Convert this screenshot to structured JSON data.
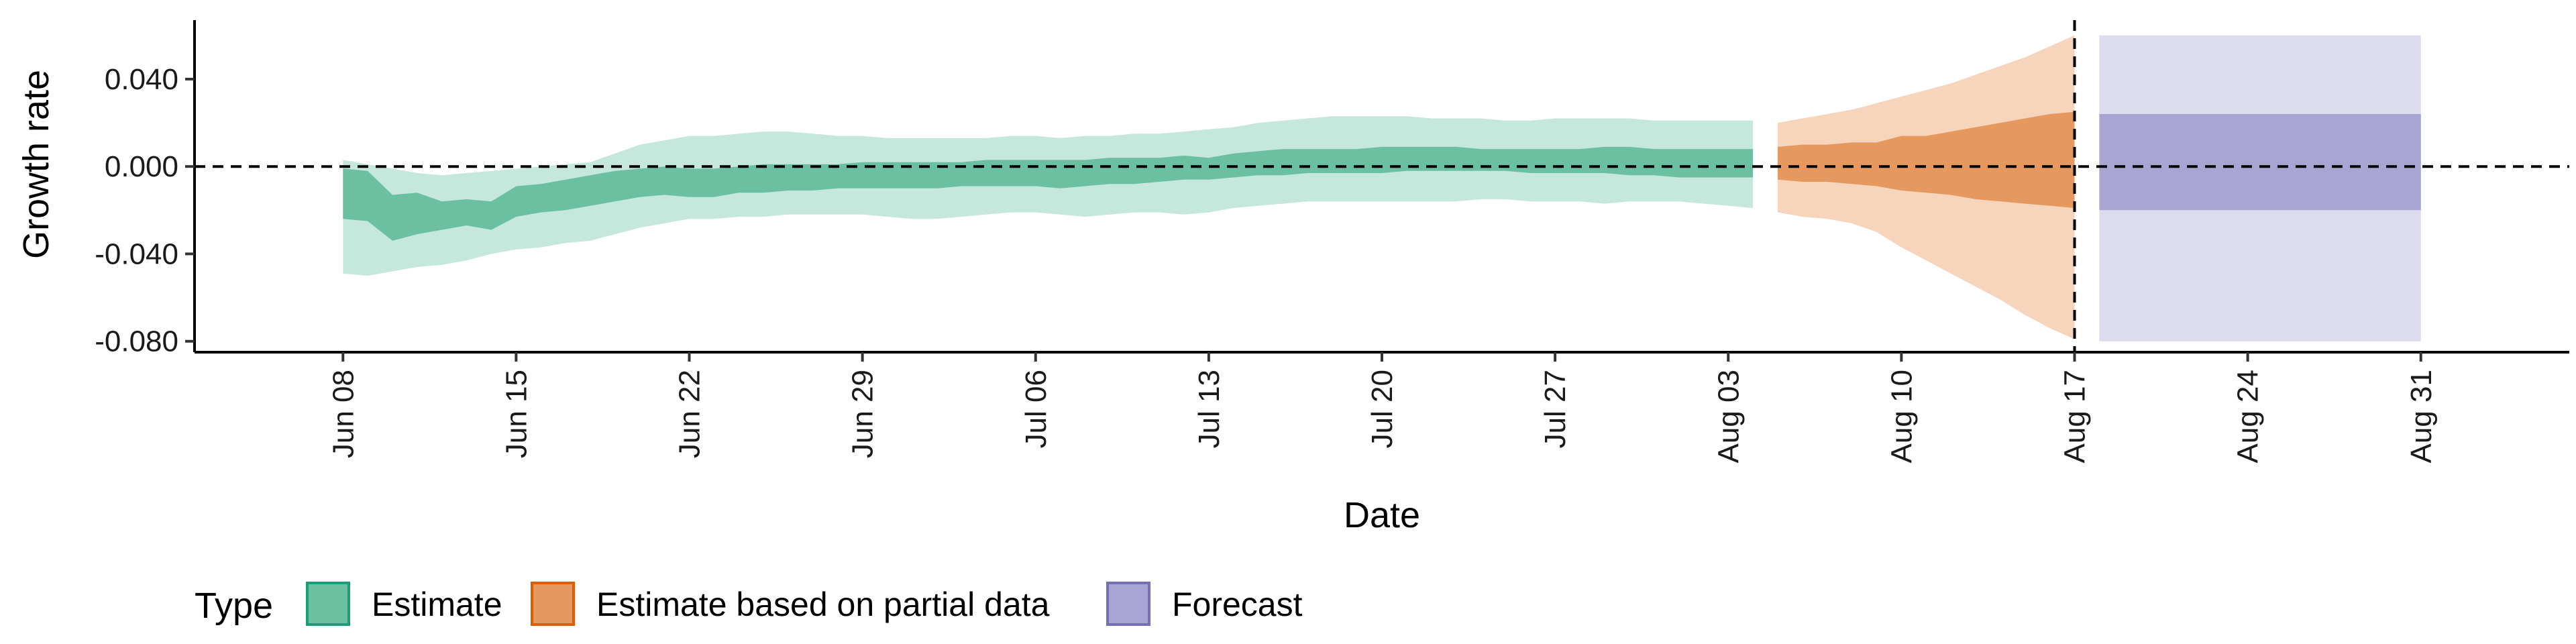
{
  "chart_data": {
    "type": "area",
    "title": "",
    "xlabel": "Date",
    "ylabel": "Growth rate",
    "xlim": [
      "2020-06-02",
      "2020-09-06"
    ],
    "ylim": [
      -0.085,
      0.067
    ],
    "x_ticks": [
      {
        "date": "2020-06-08",
        "label": "Jun 08"
      },
      {
        "date": "2020-06-15",
        "label": "Jun 15"
      },
      {
        "date": "2020-06-22",
        "label": "Jun 22"
      },
      {
        "date": "2020-06-29",
        "label": "Jun 29"
      },
      {
        "date": "2020-07-06",
        "label": "Jul 06"
      },
      {
        "date": "2020-07-13",
        "label": "Jul 13"
      },
      {
        "date": "2020-07-20",
        "label": "Jul 20"
      },
      {
        "date": "2020-07-27",
        "label": "Jul 27"
      },
      {
        "date": "2020-08-03",
        "label": "Aug 03"
      },
      {
        "date": "2020-08-10",
        "label": "Aug 10"
      },
      {
        "date": "2020-08-17",
        "label": "Aug 17"
      },
      {
        "date": "2020-08-24",
        "label": "Aug 24"
      },
      {
        "date": "2020-08-31",
        "label": "Aug 31"
      }
    ],
    "y_ticks": [
      {
        "value": 0.04,
        "label": "0.040"
      },
      {
        "value": 0.0,
        "label": "0.000"
      },
      {
        "value": -0.04,
        "label": "-0.040"
      },
      {
        "value": -0.08,
        "label": "-0.080"
      }
    ],
    "grid": false,
    "reference_lines": {
      "horizontal_y": 0.0,
      "vertical_date": "2020-08-17"
    },
    "legend": {
      "title": "Type",
      "position": "bottom",
      "entries": [
        {
          "label": "Estimate",
          "series": "Estimate"
        },
        {
          "label": "Estimate based on partial data",
          "series": "Estimate based on partial data"
        },
        {
          "label": "Forecast",
          "series": "Forecast"
        }
      ]
    },
    "series": [
      {
        "name": "Estimate",
        "colors": {
          "outer": "#c6e8dc",
          "inner": "#6cc0a2",
          "border": "#1b9e77"
        },
        "x": [
          "2020-06-08",
          "2020-06-09",
          "2020-06-10",
          "2020-06-11",
          "2020-06-12",
          "2020-06-13",
          "2020-06-14",
          "2020-06-15",
          "2020-06-16",
          "2020-06-17",
          "2020-06-18",
          "2020-06-19",
          "2020-06-20",
          "2020-06-21",
          "2020-06-22",
          "2020-06-23",
          "2020-06-24",
          "2020-06-25",
          "2020-06-26",
          "2020-06-27",
          "2020-06-28",
          "2020-06-29",
          "2020-06-30",
          "2020-07-01",
          "2020-07-02",
          "2020-07-03",
          "2020-07-04",
          "2020-07-05",
          "2020-07-06",
          "2020-07-07",
          "2020-07-08",
          "2020-07-09",
          "2020-07-10",
          "2020-07-11",
          "2020-07-12",
          "2020-07-13",
          "2020-07-14",
          "2020-07-15",
          "2020-07-16",
          "2020-07-17",
          "2020-07-18",
          "2020-07-19",
          "2020-07-20",
          "2020-07-21",
          "2020-07-22",
          "2020-07-23",
          "2020-07-24",
          "2020-07-25",
          "2020-07-26",
          "2020-07-27",
          "2020-07-28",
          "2020-07-29",
          "2020-07-30",
          "2020-07-31",
          "2020-08-01",
          "2020-08-02",
          "2020-08-03",
          "2020-08-04"
        ],
        "lower_90": [
          -0.049,
          -0.05,
          -0.048,
          -0.046,
          -0.045,
          -0.043,
          -0.04,
          -0.038,
          -0.037,
          -0.035,
          -0.034,
          -0.031,
          -0.028,
          -0.026,
          -0.024,
          -0.024,
          -0.023,
          -0.023,
          -0.022,
          -0.022,
          -0.022,
          -0.022,
          -0.023,
          -0.024,
          -0.024,
          -0.023,
          -0.022,
          -0.021,
          -0.021,
          -0.022,
          -0.023,
          -0.022,
          -0.021,
          -0.021,
          -0.022,
          -0.021,
          -0.019,
          -0.018,
          -0.017,
          -0.016,
          -0.016,
          -0.016,
          -0.016,
          -0.016,
          -0.016,
          -0.016,
          -0.015,
          -0.015,
          -0.016,
          -0.016,
          -0.016,
          -0.017,
          -0.016,
          -0.016,
          -0.016,
          -0.017,
          -0.018,
          -0.019
        ],
        "upper_90": [
          0.003,
          0.001,
          -0.001,
          -0.003,
          -0.004,
          -0.003,
          -0.002,
          -0.001,
          0.0,
          0.001,
          0.002,
          0.006,
          0.01,
          0.012,
          0.014,
          0.014,
          0.015,
          0.016,
          0.016,
          0.015,
          0.014,
          0.014,
          0.013,
          0.013,
          0.013,
          0.013,
          0.013,
          0.014,
          0.014,
          0.013,
          0.014,
          0.014,
          0.015,
          0.015,
          0.016,
          0.017,
          0.018,
          0.02,
          0.021,
          0.022,
          0.023,
          0.023,
          0.023,
          0.023,
          0.022,
          0.022,
          0.022,
          0.021,
          0.021,
          0.022,
          0.022,
          0.022,
          0.022,
          0.021,
          0.021,
          0.021,
          0.021,
          0.021
        ],
        "lower_50": [
          -0.024,
          -0.025,
          -0.034,
          -0.031,
          -0.029,
          -0.027,
          -0.029,
          -0.023,
          -0.021,
          -0.02,
          -0.018,
          -0.016,
          -0.014,
          -0.013,
          -0.014,
          -0.014,
          -0.012,
          -0.012,
          -0.011,
          -0.011,
          -0.01,
          -0.01,
          -0.01,
          -0.01,
          -0.01,
          -0.009,
          -0.009,
          -0.009,
          -0.009,
          -0.01,
          -0.009,
          -0.008,
          -0.008,
          -0.007,
          -0.006,
          -0.006,
          -0.005,
          -0.004,
          -0.004,
          -0.003,
          -0.003,
          -0.003,
          -0.003,
          -0.002,
          -0.002,
          -0.002,
          -0.002,
          -0.002,
          -0.003,
          -0.003,
          -0.003,
          -0.003,
          -0.004,
          -0.004,
          -0.005,
          -0.005,
          -0.005,
          -0.005
        ],
        "upper_50": [
          -0.001,
          -0.002,
          -0.013,
          -0.012,
          -0.016,
          -0.015,
          -0.016,
          -0.009,
          -0.008,
          -0.006,
          -0.004,
          -0.002,
          -0.001,
          0.0,
          -0.001,
          -0.001,
          0.0,
          0.001,
          0.001,
          0.001,
          0.001,
          0.002,
          0.002,
          0.002,
          0.002,
          0.002,
          0.003,
          0.003,
          0.003,
          0.003,
          0.003,
          0.004,
          0.004,
          0.004,
          0.005,
          0.004,
          0.006,
          0.007,
          0.008,
          0.008,
          0.008,
          0.008,
          0.009,
          0.009,
          0.009,
          0.009,
          0.008,
          0.008,
          0.008,
          0.008,
          0.008,
          0.009,
          0.009,
          0.008,
          0.008,
          0.008,
          0.008,
          0.008
        ]
      },
      {
        "name": "Estimate based on partial data",
        "colors": {
          "outer": "#f6d5bc",
          "inner": "#e5995f",
          "border": "#d95f02"
        },
        "x": [
          "2020-08-05",
          "2020-08-06",
          "2020-08-07",
          "2020-08-08",
          "2020-08-09",
          "2020-08-10",
          "2020-08-11",
          "2020-08-12",
          "2020-08-13",
          "2020-08-14",
          "2020-08-15",
          "2020-08-16",
          "2020-08-17"
        ],
        "lower_90": [
          -0.021,
          -0.023,
          -0.024,
          -0.026,
          -0.03,
          -0.037,
          -0.043,
          -0.049,
          -0.055,
          -0.061,
          -0.068,
          -0.074,
          -0.079
        ],
        "upper_90": [
          0.02,
          0.022,
          0.024,
          0.026,
          0.029,
          0.032,
          0.035,
          0.038,
          0.042,
          0.046,
          0.05,
          0.055,
          0.06
        ],
        "lower_50": [
          -0.006,
          -0.007,
          -0.007,
          -0.008,
          -0.009,
          -0.011,
          -0.012,
          -0.013,
          -0.015,
          -0.016,
          -0.017,
          -0.018,
          -0.019
        ],
        "upper_50": [
          0.009,
          0.01,
          0.01,
          0.011,
          0.011,
          0.014,
          0.014,
          0.016,
          0.018,
          0.02,
          0.022,
          0.024,
          0.025
        ]
      },
      {
        "name": "Forecast",
        "colors": {
          "outer": "#dcdcee",
          "inner": "#a9a5d3",
          "border": "#7570b3"
        },
        "x": [
          "2020-08-18",
          "2020-08-31"
        ],
        "lower_90": [
          -0.08,
          -0.08
        ],
        "upper_90": [
          0.06,
          0.06
        ],
        "lower_50": [
          -0.02,
          -0.02
        ],
        "upper_50": [
          0.024,
          0.024
        ]
      }
    ]
  }
}
